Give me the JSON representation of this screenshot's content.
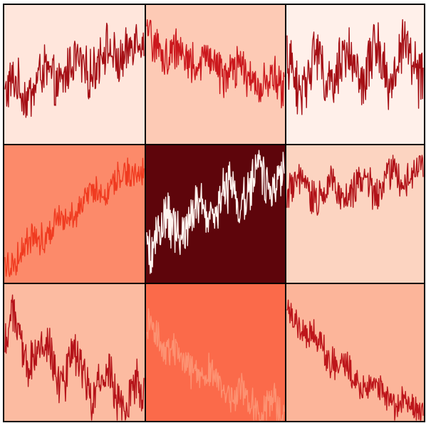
{
  "chart_data": {
    "type": "line",
    "layout": {
      "rows": 3,
      "cols": 3
    },
    "x": {
      "count": 240,
      "range": [
        0,
        239
      ]
    },
    "ylim": [
      0,
      1
    ],
    "grid": false,
    "panels": [
      {
        "name": "",
        "background": "#ffe6dc",
        "line_color": "#a50f15",
        "shape": {
          "start": 0.35,
          "end": 0.72,
          "curve": 0,
          "wave": 0.08,
          "noise": 0.16
        }
      },
      {
        "name": "",
        "background": "#fdcab5",
        "line_color": "#cb181d",
        "shape": {
          "start": 0.72,
          "end": 0.4,
          "curve": 0,
          "wave": 0.06,
          "noise": 0.14
        }
      },
      {
        "name": "",
        "background": "#fff0ea",
        "line_color": "#a50f15",
        "shape": {
          "start": 0.5,
          "end": 0.6,
          "curve": 0,
          "wave": 0.14,
          "noise": 0.18
        }
      },
      {
        "name": "",
        "background": "#fc8a6a",
        "line_color": "#f03b20",
        "shape": {
          "start": 0.12,
          "end": 0.85,
          "curve": 0.2,
          "wave": 0.04,
          "noise": 0.1
        }
      },
      {
        "name": "",
        "background": "#5e050b",
        "line_color": "#fff5f0",
        "shape": {
          "start": 0.3,
          "end": 0.82,
          "curve": 0,
          "wave": 0.1,
          "noise": 0.16
        }
      },
      {
        "name": "",
        "background": "#fcd4c1",
        "line_color": "#b11218",
        "shape": {
          "start": 0.7,
          "end": 0.85,
          "curve": -0.35,
          "wave": 0.06,
          "noise": 0.12
        }
      },
      {
        "name": "",
        "background": "#fcbba1",
        "line_color": "#b51319",
        "shape": {
          "start": 0.62,
          "end": 0.12,
          "curve": 0,
          "wave": 0.14,
          "noise": 0.16
        }
      },
      {
        "name": "",
        "background": "#fb6a4a",
        "line_color": "#fc9272",
        "shape": {
          "start": 0.7,
          "end": 0.05,
          "curve": -0.4,
          "wave": 0.06,
          "noise": 0.12
        }
      },
      {
        "name": "",
        "background": "#fcb59a",
        "line_color": "#bd161b",
        "shape": {
          "start": 0.82,
          "end": 0.08,
          "curve": -0.5,
          "wave": 0.04,
          "noise": 0.1
        }
      }
    ]
  }
}
